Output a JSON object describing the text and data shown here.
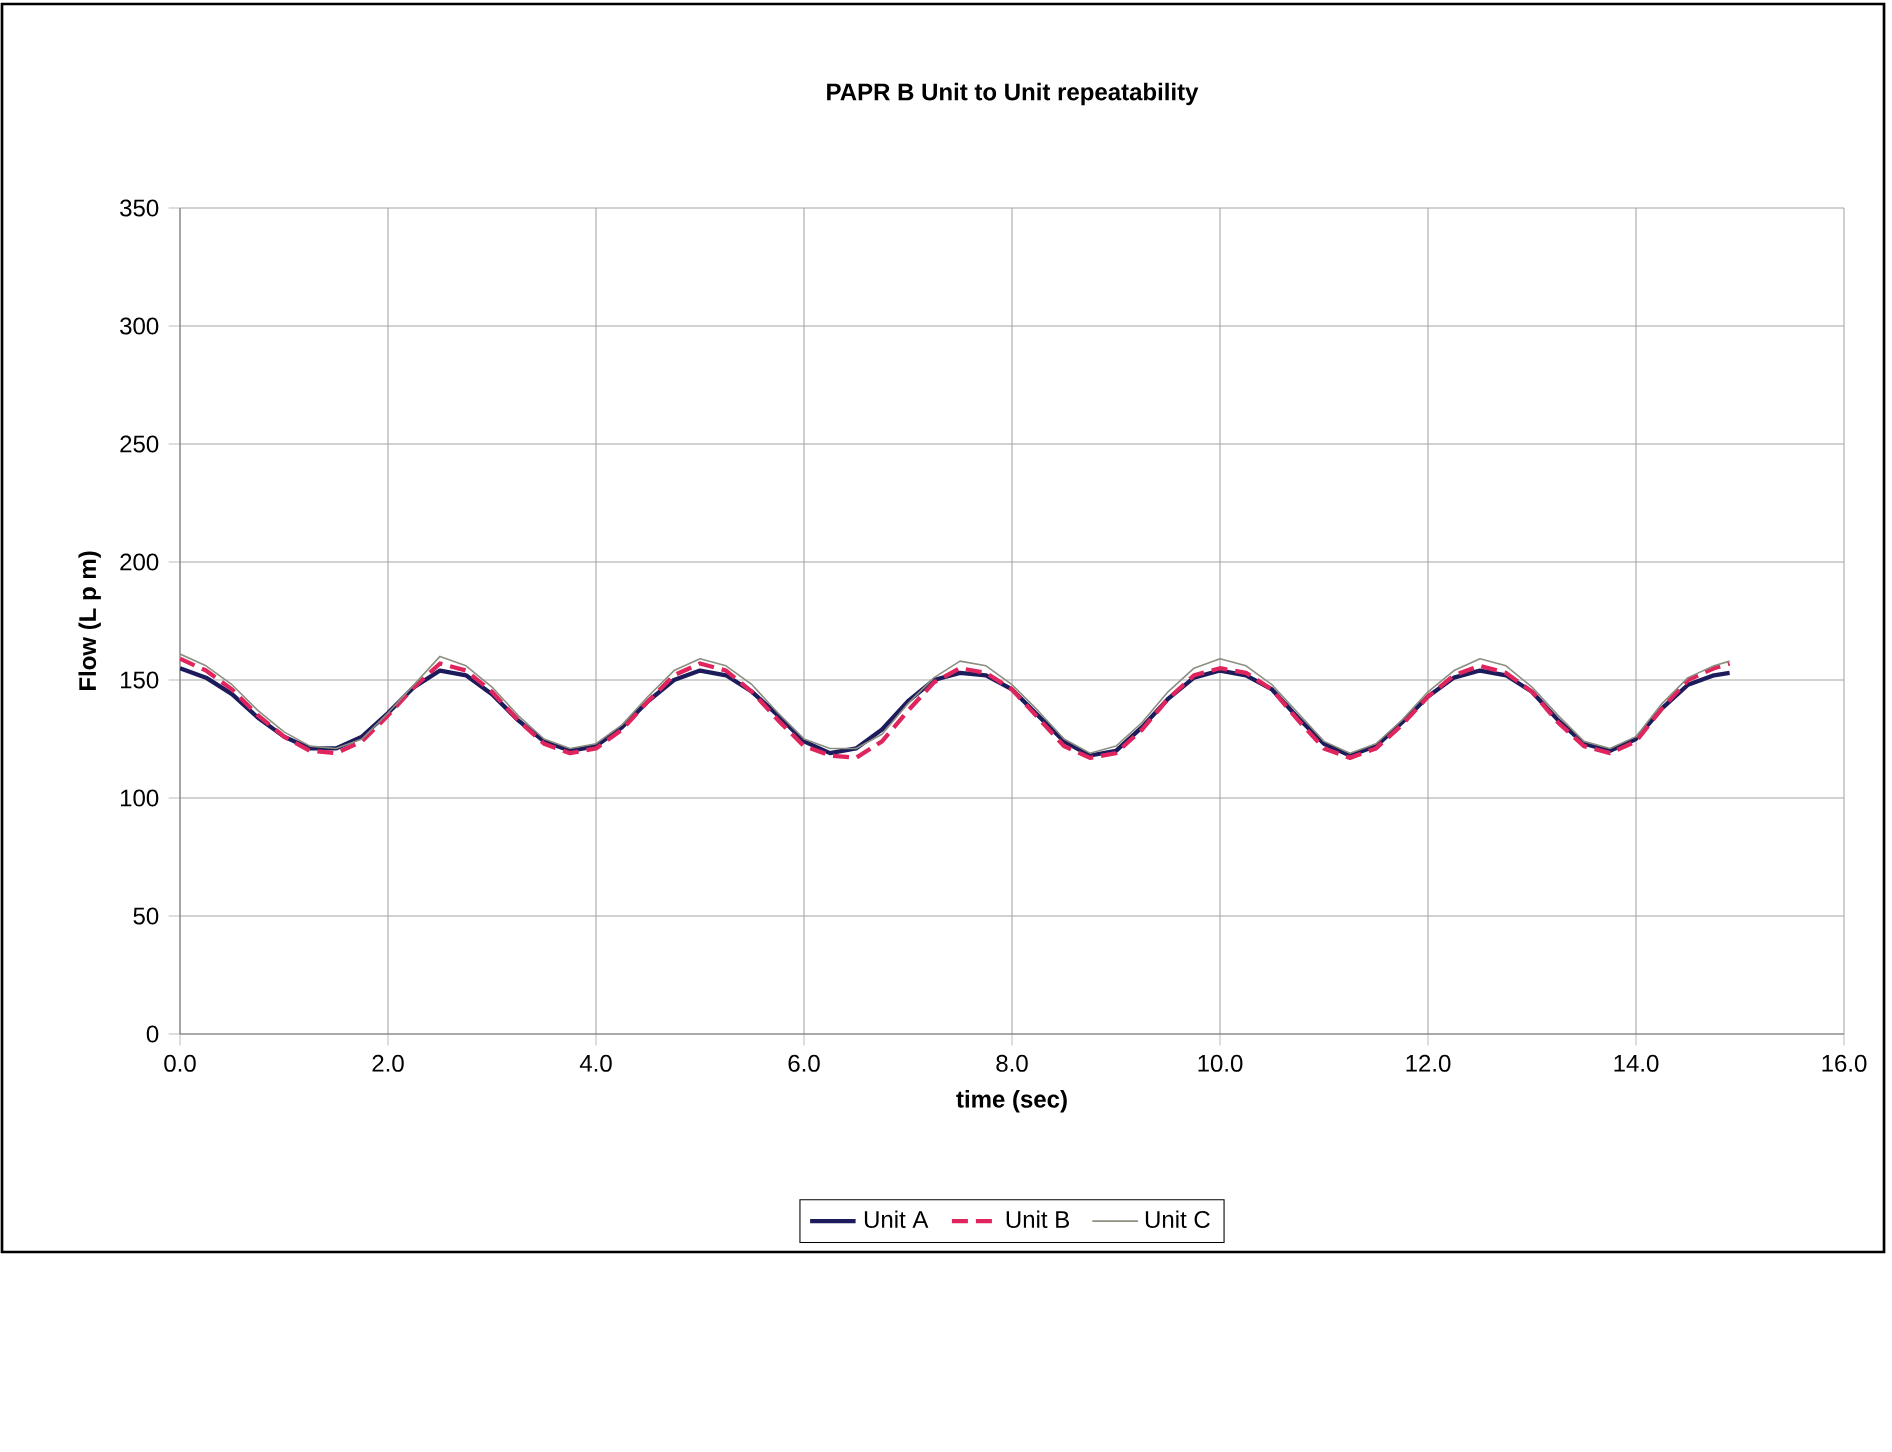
{
  "chart_data": {
    "type": "line",
    "title": "PAPR B Unit to Unit repeatability",
    "xlabel": "time (sec)",
    "ylabel": "Flow (L p m)",
    "x": [
      0,
      0.25,
      0.5,
      0.75,
      1.0,
      1.25,
      1.5,
      1.75,
      2.0,
      2.25,
      2.5,
      2.75,
      3.0,
      3.25,
      3.5,
      3.75,
      4.0,
      4.25,
      4.5,
      4.75,
      5.0,
      5.25,
      5.5,
      5.75,
      6.0,
      6.25,
      6.5,
      6.75,
      7.0,
      7.25,
      7.5,
      7.75,
      8.0,
      8.25,
      8.5,
      8.75,
      9.0,
      9.25,
      9.5,
      9.75,
      10.0,
      10.25,
      10.5,
      10.75,
      11.0,
      11.25,
      11.5,
      11.75,
      12.0,
      12.25,
      12.5,
      12.75,
      13.0,
      13.25,
      13.5,
      13.75,
      14.0,
      14.25,
      14.5,
      14.75,
      14.9
    ],
    "series": [
      {
        "name": "Unit A",
        "color": "#1c1c5c",
        "line_style": "solid",
        "values": [
          155,
          151,
          144,
          134,
          126,
          121,
          121,
          126,
          136,
          147,
          154,
          152,
          144,
          133,
          124,
          120,
          122,
          130,
          141,
          150,
          154,
          152,
          145,
          135,
          124,
          119,
          121,
          129,
          141,
          150,
          153,
          152,
          146,
          135,
          124,
          118,
          120,
          130,
          142,
          151,
          154,
          152,
          146,
          134,
          123,
          118,
          122,
          132,
          143,
          151,
          154,
          152,
          145,
          133,
          123,
          120,
          125,
          138,
          148,
          152,
          153
        ]
      },
      {
        "name": "Unit B",
        "color": "#e0245e",
        "line_style": "dashed",
        "values": [
          159,
          154,
          146,
          135,
          126,
          120,
          119,
          124,
          135,
          147,
          157,
          154,
          145,
          133,
          123,
          119,
          121,
          129,
          141,
          152,
          157,
          154,
          145,
          133,
          122,
          118,
          117,
          124,
          137,
          149,
          155,
          153,
          146,
          134,
          122,
          117,
          119,
          129,
          142,
          152,
          155,
          153,
          146,
          133,
          121,
          117,
          121,
          131,
          143,
          152,
          156,
          153,
          145,
          132,
          122,
          119,
          124,
          138,
          150,
          155,
          157
        ]
      },
      {
        "name": "Unit C",
        "color": "#8a8f80",
        "line_style": "solid",
        "values": [
          161,
          156,
          148,
          137,
          128,
          122,
          121,
          125,
          136,
          148,
          160,
          156,
          147,
          135,
          125,
          121,
          123,
          131,
          143,
          154,
          159,
          156,
          148,
          136,
          125,
          121,
          121,
          127,
          140,
          151,
          158,
          156,
          148,
          137,
          125,
          119,
          122,
          132,
          145,
          155,
          159,
          156,
          148,
          136,
          124,
          119,
          123,
          133,
          145,
          154,
          159,
          156,
          147,
          135,
          124,
          121,
          126,
          140,
          151,
          156,
          158
        ]
      }
    ],
    "xlim": [
      0,
      16
    ],
    "xticks": [
      {
        "value": 0,
        "label": "0.0"
      },
      {
        "value": 2,
        "label": "2.0"
      },
      {
        "value": 4,
        "label": "4.0"
      },
      {
        "value": 6,
        "label": "6.0"
      },
      {
        "value": 8,
        "label": "8.0"
      },
      {
        "value": 10,
        "label": "10.0"
      },
      {
        "value": 12,
        "label": "12.0"
      },
      {
        "value": 14,
        "label": "14.0"
      },
      {
        "value": 16,
        "label": "16.0"
      }
    ],
    "ylim": [
      0,
      350
    ],
    "yticks": [
      0,
      50,
      100,
      150,
      200,
      250,
      300,
      350
    ],
    "grid": true,
    "legend": "bottom",
    "marker": "none"
  }
}
